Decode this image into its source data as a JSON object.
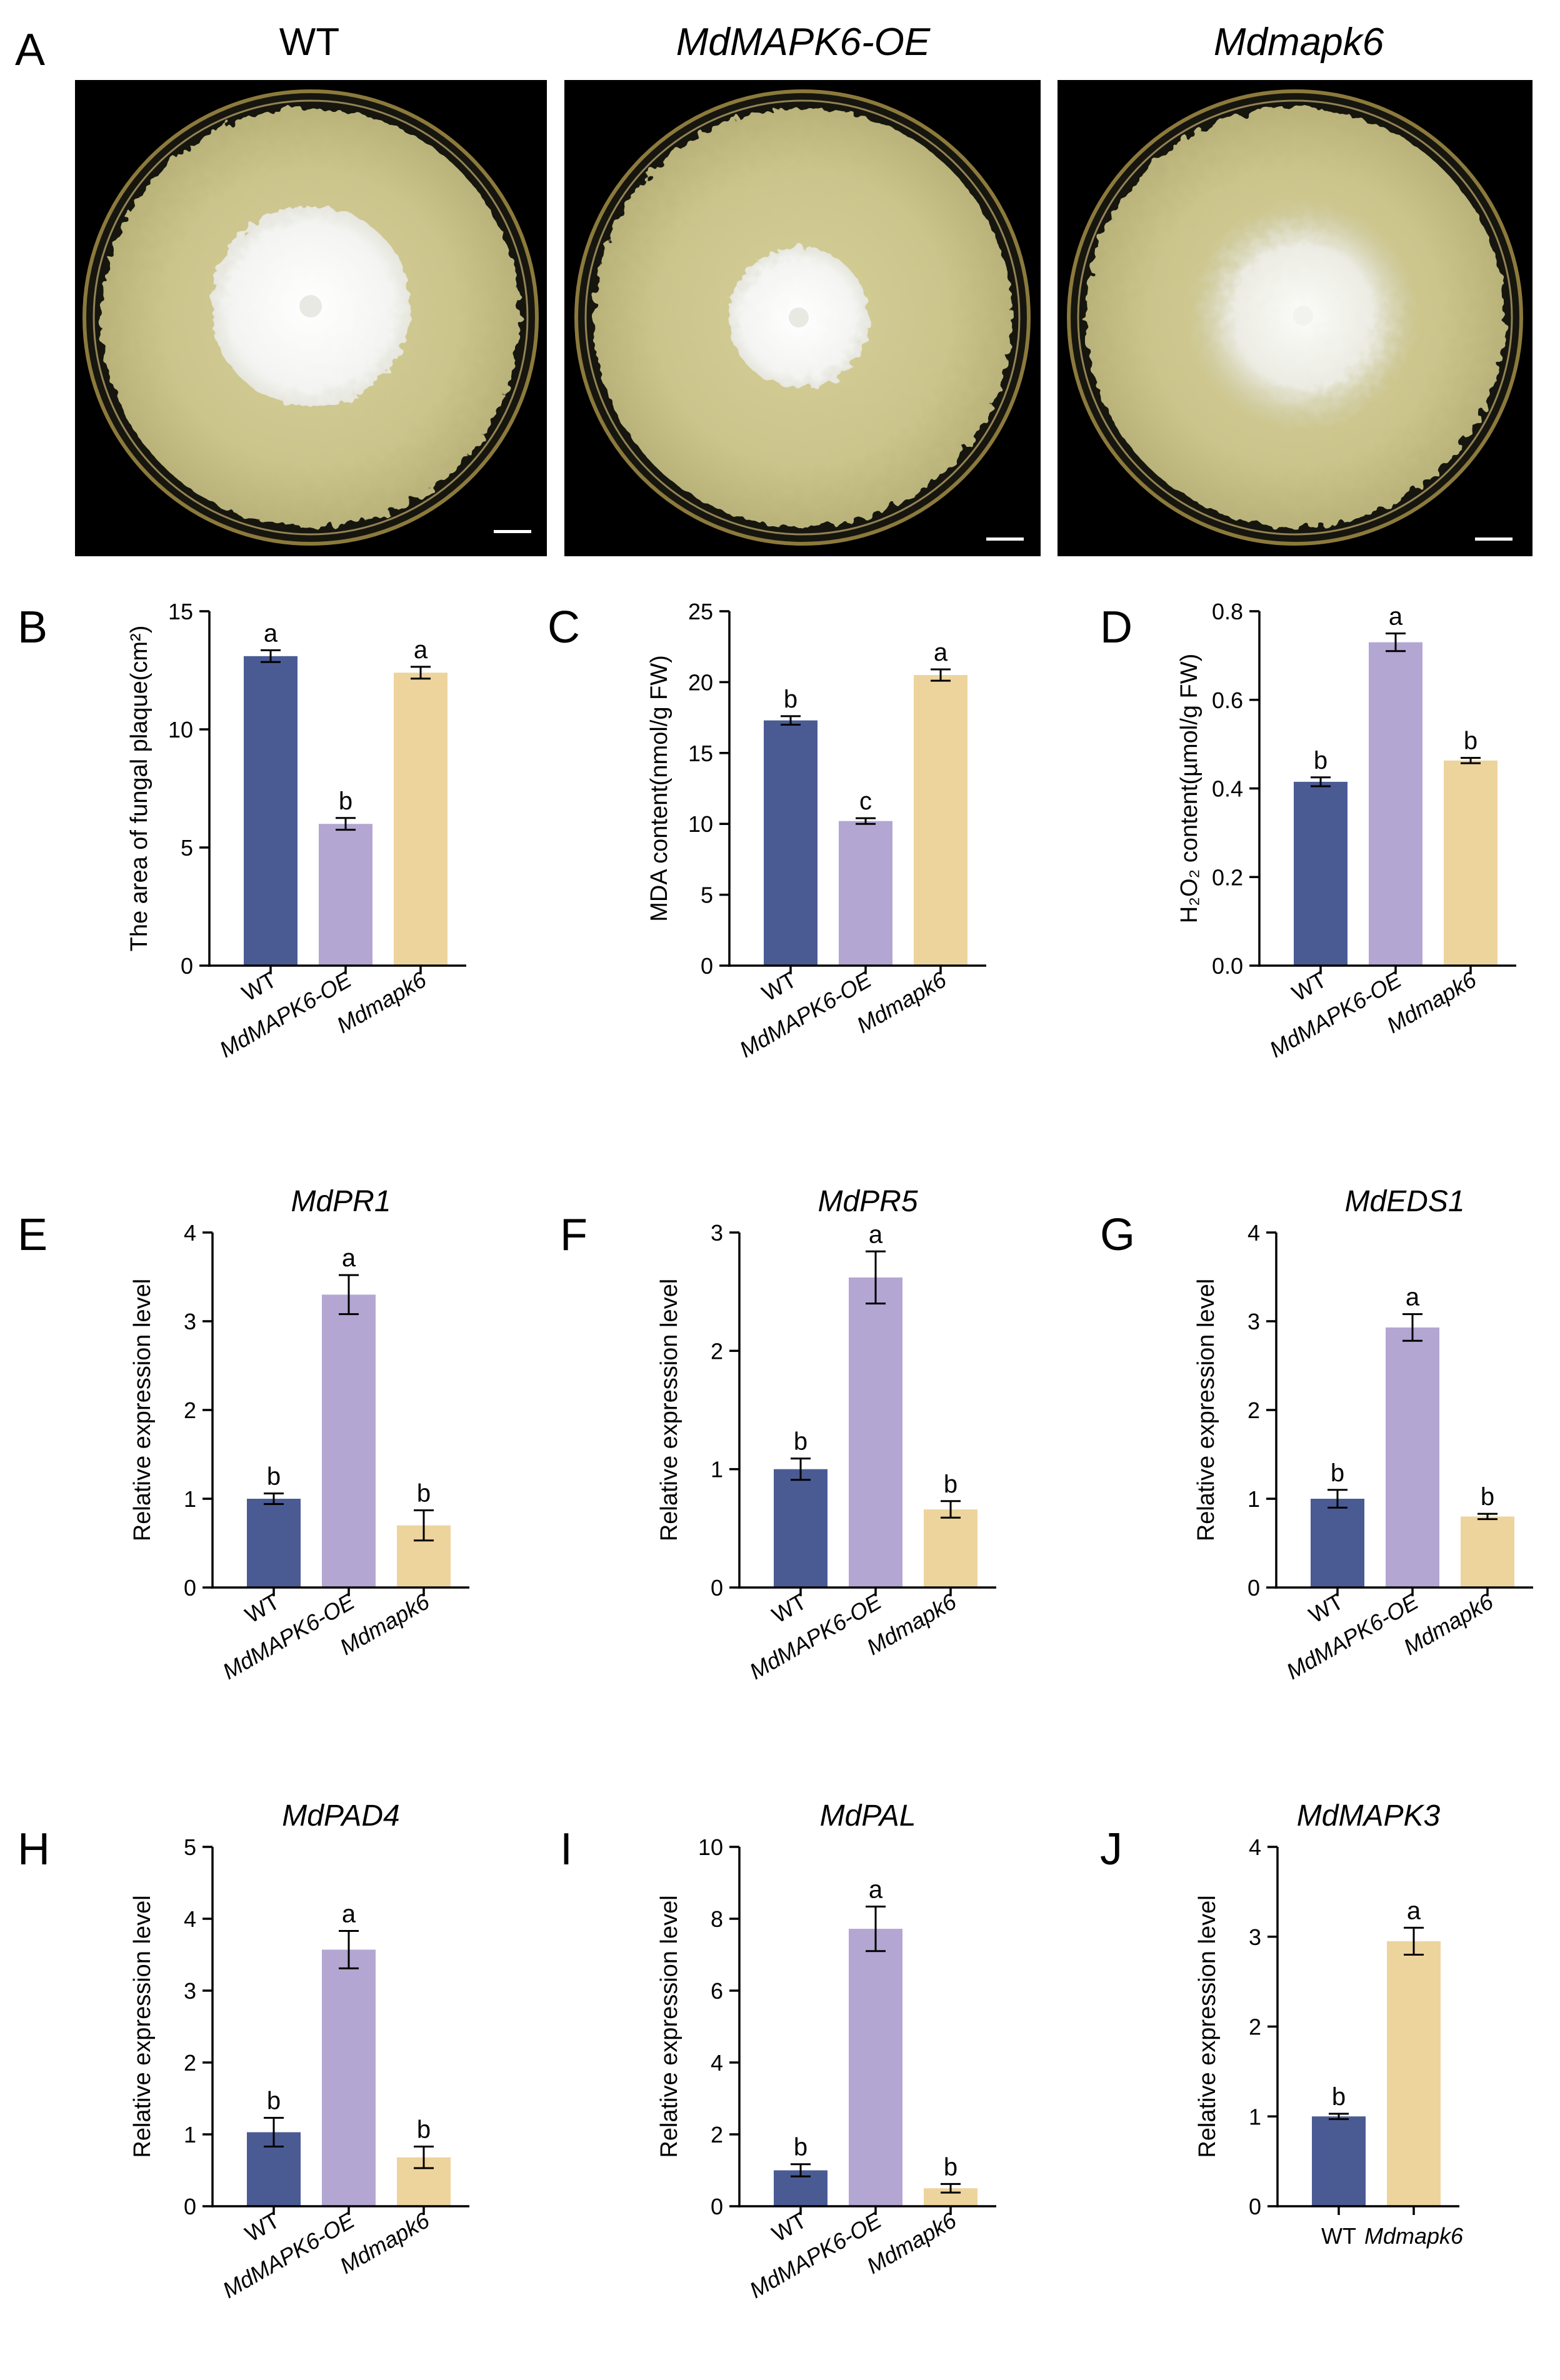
{
  "panel_a": {
    "letter": "A",
    "headers": [
      {
        "text": "WT",
        "italic": false
      },
      {
        "text": "MdMAPK6-OE",
        "italic": true
      },
      {
        "text": "Mdmapk6",
        "italic": true
      }
    ]
  },
  "colors": {
    "WT": "#4a5b94",
    "MdMAPK6-OE": "#b4a6d2",
    "Mdmapk6": "#edd49d",
    "axis": "#000000"
  },
  "chart_data": [
    {
      "letter": "B",
      "type": "bar",
      "title": "",
      "ylabel": "The area of fungal plaque(cm²)",
      "categories": [
        "WT",
        "MdMAPK6-OE",
        "Mdmapk6"
      ],
      "values": [
        13.1,
        6.0,
        12.4
      ],
      "errors": [
        0.25,
        0.25,
        0.25
      ],
      "letters": [
        "a",
        "b",
        "a"
      ],
      "ylim": [
        0,
        15
      ],
      "ticks": [
        0,
        5,
        10,
        15
      ]
    },
    {
      "letter": "C",
      "type": "bar",
      "title": "",
      "ylabel": "MDA content(nmol/g FW)",
      "categories": [
        "WT",
        "MdMAPK6-OE",
        "Mdmapk6"
      ],
      "values": [
        17.3,
        10.2,
        20.5
      ],
      "errors": [
        0.3,
        0.2,
        0.4
      ],
      "letters": [
        "b",
        "c",
        "a"
      ],
      "ylim": [
        0,
        25
      ],
      "ticks": [
        0,
        5,
        10,
        15,
        20,
        25
      ]
    },
    {
      "letter": "D",
      "type": "bar",
      "title": "",
      "ylabel": "H₂O₂ content(µmol/g FW)",
      "categories": [
        "WT",
        "MdMAPK6-OE",
        "Mdmapk6"
      ],
      "values": [
        0.415,
        0.73,
        0.463
      ],
      "errors": [
        0.01,
        0.02,
        0.006
      ],
      "letters": [
        "b",
        "a",
        "b"
      ],
      "ylim": [
        0,
        0.8
      ],
      "ticks": [
        "0.0",
        "0.2",
        "0.4",
        "0.6",
        "0.8"
      ]
    },
    {
      "letter": "E",
      "type": "bar",
      "title": "MdPR1",
      "ylabel": "Relative expression level",
      "categories": [
        "WT",
        "MdMAPK6-OE",
        "Mdmapk6"
      ],
      "values": [
        1.0,
        3.3,
        0.7
      ],
      "errors": [
        0.06,
        0.22,
        0.17
      ],
      "letters": [
        "b",
        "a",
        "b"
      ],
      "ylim": [
        0,
        4
      ],
      "ticks": [
        0,
        1,
        2,
        3,
        4
      ]
    },
    {
      "letter": "F",
      "type": "bar",
      "title": "MdPR5",
      "ylabel": "Relative expression level",
      "categories": [
        "WT",
        "MdMAPK6-OE",
        "Mdmapk6"
      ],
      "values": [
        1.0,
        2.62,
        0.66
      ],
      "errors": [
        0.09,
        0.22,
        0.07
      ],
      "letters": [
        "b",
        "a",
        "b"
      ],
      "ylim": [
        0,
        3
      ],
      "ticks": [
        0,
        1,
        2,
        3
      ]
    },
    {
      "letter": "G",
      "type": "bar",
      "title": "MdEDS1",
      "ylabel": "Relative expression level",
      "categories": [
        "WT",
        "MdMAPK6-OE",
        "Mdmapk6"
      ],
      "values": [
        1.0,
        2.93,
        0.8
      ],
      "errors": [
        0.1,
        0.15,
        0.03
      ],
      "letters": [
        "b",
        "a",
        "b"
      ],
      "ylim": [
        0,
        4
      ],
      "ticks": [
        0,
        1,
        2,
        3,
        4
      ]
    },
    {
      "letter": "H",
      "type": "bar",
      "title": "MdPAD4",
      "ylabel": "Relative expression level",
      "categories": [
        "WT",
        "MdMAPK6-OE",
        "Mdmapk6"
      ],
      "values": [
        1.03,
        3.57,
        0.68
      ],
      "errors": [
        0.2,
        0.26,
        0.15
      ],
      "letters": [
        "b",
        "a",
        "b"
      ],
      "ylim": [
        0,
        5
      ],
      "ticks": [
        0,
        1,
        2,
        3,
        4,
        5
      ]
    },
    {
      "letter": "I",
      "type": "bar",
      "title": "MdPAL",
      "ylabel": "Relative expression level",
      "categories": [
        "WT",
        "MdMAPK6-OE",
        "Mdmapk6"
      ],
      "values": [
        1.0,
        7.72,
        0.5
      ],
      "errors": [
        0.17,
        0.62,
        0.12
      ],
      "letters": [
        "b",
        "a",
        "b"
      ],
      "ylim": [
        0,
        10
      ],
      "ticks": [
        0,
        2,
        4,
        6,
        8,
        10
      ]
    },
    {
      "letter": "J",
      "type": "bar",
      "title": "MdMAPK3",
      "ylabel": "Relative expression level",
      "categories": [
        "WT",
        "Mdmapk6"
      ],
      "values": [
        1.0,
        2.95
      ],
      "errors": [
        0.03,
        0.15
      ],
      "letters": [
        "b",
        "a"
      ],
      "ylim": [
        0,
        4
      ],
      "ticks": [
        0,
        1,
        2,
        3,
        4
      ],
      "horizontal_labels": true
    }
  ]
}
